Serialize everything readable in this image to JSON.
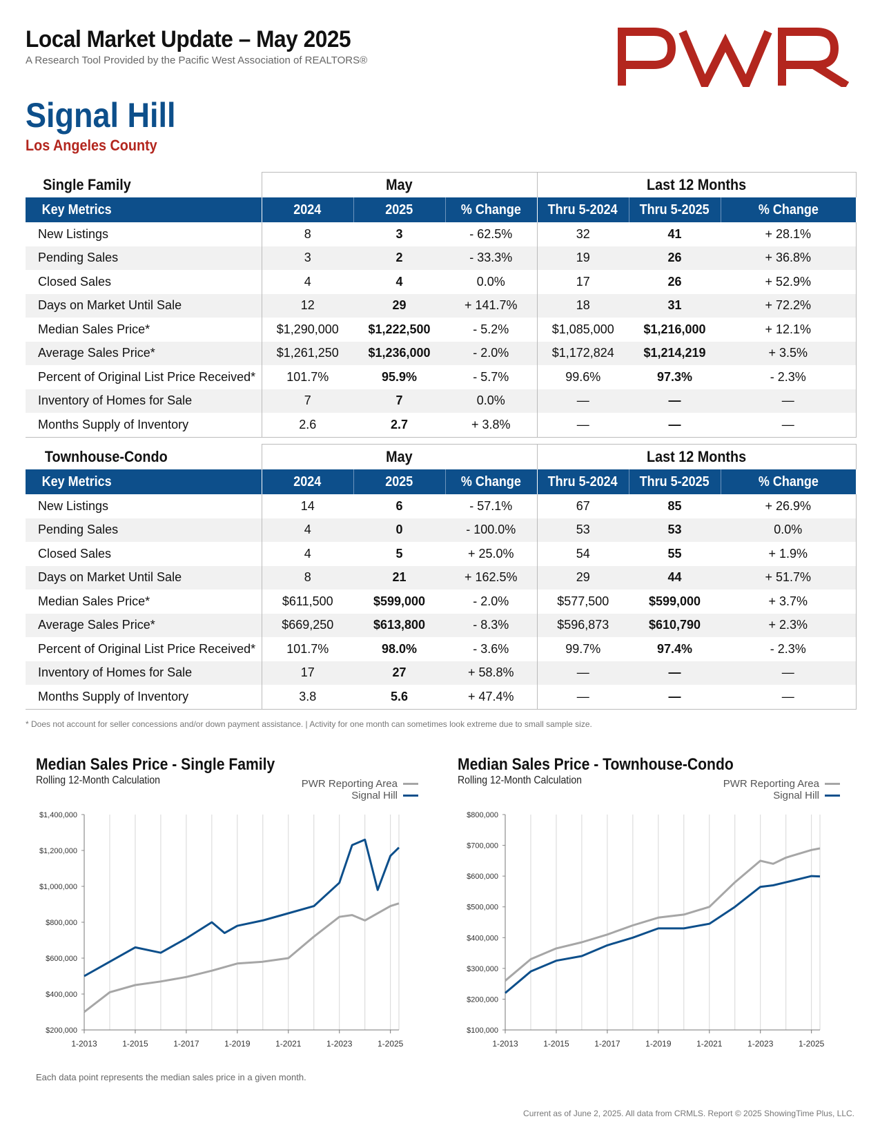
{
  "header": {
    "title": "Local Market Update – May 2025",
    "subtitle": "A Research Tool Provided by the Pacific West Association of REALTORS®",
    "logo_text": "PWR",
    "area": "Signal Hill",
    "county": "Los Angeles County"
  },
  "colors": {
    "brand_blue": "#0d4f8b",
    "brand_red": "#b3261e",
    "gray_series": "#a6a6a6"
  },
  "single_family": {
    "section_label": "Single Family",
    "group_may": "May",
    "group_12": "Last 12 Months",
    "columns": [
      "Key Metrics",
      "2024",
      "2025",
      "% Change",
      "Thru 5-2024",
      "Thru 5-2025",
      "% Change"
    ],
    "rows": [
      [
        "New Listings",
        "8",
        "3",
        "- 62.5%",
        "32",
        "41",
        "+ 28.1%"
      ],
      [
        "Pending Sales",
        "3",
        "2",
        "- 33.3%",
        "19",
        "26",
        "+ 36.8%"
      ],
      [
        "Closed Sales",
        "4",
        "4",
        "0.0%",
        "17",
        "26",
        "+ 52.9%"
      ],
      [
        "Days on Market Until Sale",
        "12",
        "29",
        "+ 141.7%",
        "18",
        "31",
        "+ 72.2%"
      ],
      [
        "Median Sales Price*",
        "$1,290,000",
        "$1,222,500",
        "- 5.2%",
        "$1,085,000",
        "$1,216,000",
        "+ 12.1%"
      ],
      [
        "Average Sales Price*",
        "$1,261,250",
        "$1,236,000",
        "- 2.0%",
        "$1,172,824",
        "$1,214,219",
        "+ 3.5%"
      ],
      [
        "Percent of Original List Price Received*",
        "101.7%",
        "95.9%",
        "- 5.7%",
        "99.6%",
        "97.3%",
        "- 2.3%"
      ],
      [
        "Inventory of Homes for Sale",
        "7",
        "7",
        "0.0%",
        "—",
        "—",
        "—"
      ],
      [
        "Months Supply of Inventory",
        "2.6",
        "2.7",
        "+ 3.8%",
        "—",
        "—",
        "—"
      ]
    ]
  },
  "townhouse_condo": {
    "section_label": "Townhouse-Condo",
    "group_may": "May",
    "group_12": "Last 12 Months",
    "columns": [
      "Key Metrics",
      "2024",
      "2025",
      "% Change",
      "Thru 5-2024",
      "Thru 5-2025",
      "% Change"
    ],
    "rows": [
      [
        "New Listings",
        "14",
        "6",
        "- 57.1%",
        "67",
        "85",
        "+ 26.9%"
      ],
      [
        "Pending Sales",
        "4",
        "0",
        "- 100.0%",
        "53",
        "53",
        "0.0%"
      ],
      [
        "Closed Sales",
        "4",
        "5",
        "+ 25.0%",
        "54",
        "55",
        "+ 1.9%"
      ],
      [
        "Days on Market Until Sale",
        "8",
        "21",
        "+ 162.5%",
        "29",
        "44",
        "+ 51.7%"
      ],
      [
        "Median Sales Price*",
        "$611,500",
        "$599,000",
        "- 2.0%",
        "$577,500",
        "$599,000",
        "+ 3.7%"
      ],
      [
        "Average Sales Price*",
        "$669,250",
        "$613,800",
        "- 8.3%",
        "$596,873",
        "$610,790",
        "+ 2.3%"
      ],
      [
        "Percent of Original List Price Received*",
        "101.7%",
        "98.0%",
        "- 3.6%",
        "99.7%",
        "97.4%",
        "- 2.3%"
      ],
      [
        "Inventory of Homes for Sale",
        "17",
        "27",
        "+ 58.8%",
        "—",
        "—",
        "—"
      ],
      [
        "Months Supply of Inventory",
        "3.8",
        "5.6",
        "+ 47.4%",
        "—",
        "—",
        "—"
      ]
    ]
  },
  "footnote": "* Does not account for seller concessions and/or down payment assistance. | Activity for one month can sometimes look extreme due to small sample size.",
  "chart_note": "Each data point represents the median sales price in a given month.",
  "copyright": "Current as of June 2, 2025. All data from CRMLS. Report © 2025 ShowingTime Plus, LLC.",
  "chart_data": [
    {
      "type": "line",
      "title": "Median Sales Price - Single Family",
      "subtitle": "Rolling 12-Month Calculation",
      "xlim": [
        "1-2013",
        "5-2025"
      ],
      "x_ticks": [
        "1-2013",
        "1-2015",
        "1-2017",
        "1-2019",
        "1-2021",
        "1-2023",
        "1-2025"
      ],
      "ylim": [
        200000,
        1400000
      ],
      "y_ticks": [
        "$200,000",
        "$400,000",
        "$600,000",
        "$800,000",
        "$1,000,000",
        "$1,200,000",
        "$1,400,000"
      ],
      "grid": true,
      "legend_position": "top-right",
      "series": [
        {
          "name": "PWR Reporting Area",
          "color": "#a6a6a6",
          "points": [
            [
              "1-2013",
              300000
            ],
            [
              "1-2014",
              410000
            ],
            [
              "1-2015",
              450000
            ],
            [
              "1-2016",
              470000
            ],
            [
              "1-2017",
              495000
            ],
            [
              "1-2018",
              530000
            ],
            [
              "1-2019",
              570000
            ],
            [
              "1-2020",
              580000
            ],
            [
              "1-2021",
              600000
            ],
            [
              "1-2022",
              720000
            ],
            [
              "1-2023",
              830000
            ],
            [
              "7-2023",
              840000
            ],
            [
              "1-2024",
              810000
            ],
            [
              "1-2025",
              890000
            ],
            [
              "5-2025",
              905000
            ]
          ]
        },
        {
          "name": "Signal Hill",
          "color": "#0d4f8b",
          "points": [
            [
              "1-2013",
              500000
            ],
            [
              "1-2014",
              580000
            ],
            [
              "1-2015",
              660000
            ],
            [
              "1-2016",
              630000
            ],
            [
              "1-2017",
              710000
            ],
            [
              "1-2018",
              800000
            ],
            [
              "7-2018",
              740000
            ],
            [
              "1-2019",
              780000
            ],
            [
              "1-2020",
              810000
            ],
            [
              "1-2021",
              850000
            ],
            [
              "1-2022",
              890000
            ],
            [
              "1-2023",
              1020000
            ],
            [
              "7-2023",
              1230000
            ],
            [
              "1-2024",
              1260000
            ],
            [
              "7-2024",
              980000
            ],
            [
              "1-2025",
              1170000
            ],
            [
              "5-2025",
              1216000
            ]
          ]
        }
      ]
    },
    {
      "type": "line",
      "title": "Median Sales Price - Townhouse-Condo",
      "subtitle": "Rolling 12-Month Calculation",
      "xlim": [
        "1-2013",
        "5-2025"
      ],
      "x_ticks": [
        "1-2013",
        "1-2015",
        "1-2017",
        "1-2019",
        "1-2021",
        "1-2023",
        "1-2025"
      ],
      "ylim": [
        100000,
        800000
      ],
      "y_ticks": [
        "$100,000",
        "$200,000",
        "$300,000",
        "$400,000",
        "$500,000",
        "$600,000",
        "$700,000",
        "$800,000"
      ],
      "grid": true,
      "legend_position": "top-right",
      "series": [
        {
          "name": "PWR Reporting Area",
          "color": "#a6a6a6",
          "points": [
            [
              "1-2013",
              260000
            ],
            [
              "1-2014",
              330000
            ],
            [
              "1-2015",
              365000
            ],
            [
              "1-2016",
              385000
            ],
            [
              "1-2017",
              410000
            ],
            [
              "1-2018",
              440000
            ],
            [
              "1-2019",
              465000
            ],
            [
              "1-2020",
              475000
            ],
            [
              "1-2021",
              500000
            ],
            [
              "1-2022",
              580000
            ],
            [
              "1-2023",
              650000
            ],
            [
              "7-2023",
              640000
            ],
            [
              "1-2024",
              660000
            ],
            [
              "1-2025",
              685000
            ],
            [
              "5-2025",
              690000
            ]
          ]
        },
        {
          "name": "Signal Hill",
          "color": "#0d4f8b",
          "points": [
            [
              "1-2013",
              220000
            ],
            [
              "1-2014",
              290000
            ],
            [
              "1-2015",
              325000
            ],
            [
              "1-2016",
              340000
            ],
            [
              "1-2017",
              375000
            ],
            [
              "1-2018",
              400000
            ],
            [
              "1-2019",
              430000
            ],
            [
              "1-2020",
              430000
            ],
            [
              "1-2021",
              445000
            ],
            [
              "1-2022",
              500000
            ],
            [
              "1-2023",
              565000
            ],
            [
              "7-2023",
              570000
            ],
            [
              "1-2024",
              580000
            ],
            [
              "1-2025",
              600000
            ],
            [
              "5-2025",
              599000
            ]
          ]
        }
      ]
    }
  ]
}
